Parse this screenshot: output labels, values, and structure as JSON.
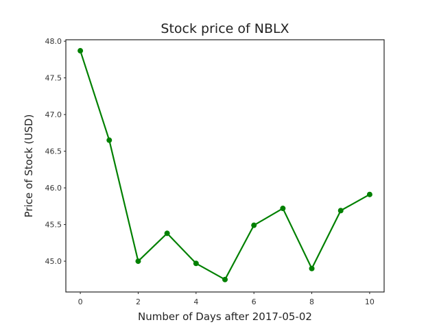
{
  "chart_data": {
    "type": "line",
    "title": "Stock price of NBLX",
    "xlabel": "Number of Days after 2017-05-02",
    "ylabel": "Price of Stock (USD)",
    "xlim": [
      -0.5,
      10.5
    ],
    "ylim": [
      44.58,
      48.02
    ],
    "x_ticks": [
      0,
      2,
      4,
      6,
      8,
      10
    ],
    "y_ticks": [
      45.0,
      45.5,
      46.0,
      46.5,
      47.0,
      47.5,
      48.0
    ],
    "y_tick_labels": [
      "45.0",
      "45.5",
      "46.0",
      "46.5",
      "47.0",
      "47.5",
      "48.0"
    ],
    "grid": false,
    "series": [
      {
        "color": "#008000",
        "x": [
          0,
          1,
          2,
          3,
          4,
          5,
          6,
          7,
          8,
          9,
          10
        ],
        "y": [
          47.87,
          46.65,
          45.0,
          45.38,
          44.97,
          44.75,
          45.49,
          45.72,
          44.9,
          45.69,
          45.91
        ]
      }
    ]
  }
}
